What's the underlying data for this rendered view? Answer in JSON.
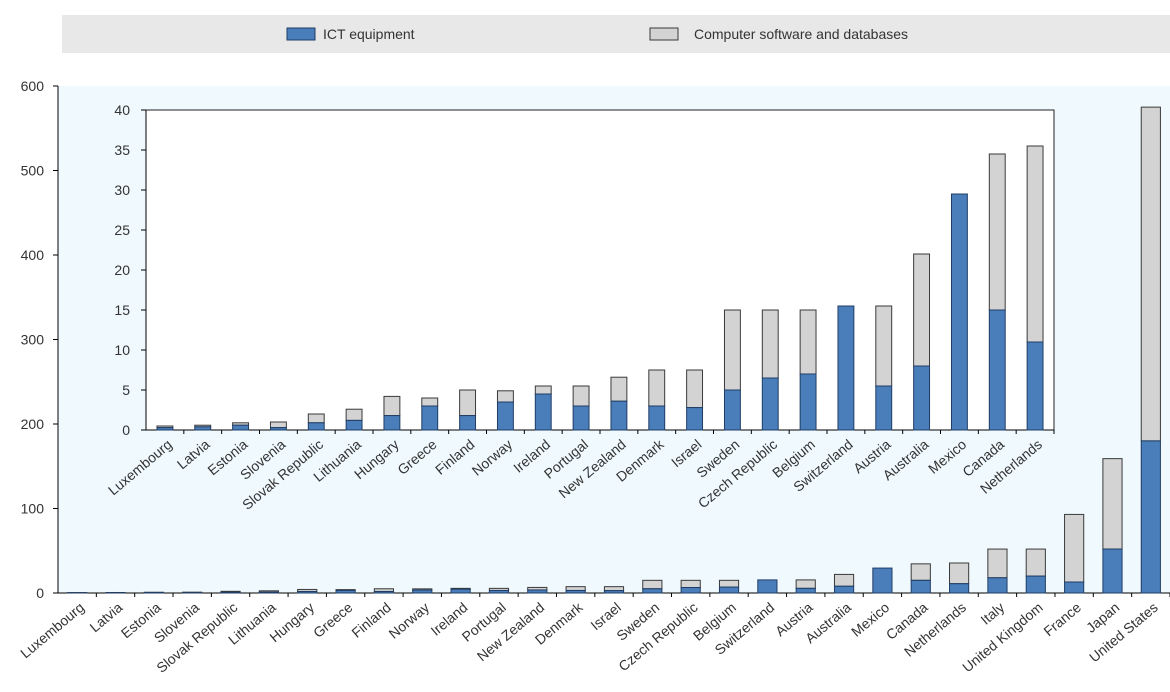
{
  "colors": {
    "ict": "#4a7ebb",
    "ict_stroke": "#1f3d66",
    "software": "#d3d3d3",
    "software_stroke": "#3a3a3a",
    "plot_bg": "#f0fafe",
    "legend_bg": "#e8e8e8",
    "axis": "#000000",
    "grid": "#bfbfbf"
  },
  "legend": {
    "items": [
      {
        "label": "ICT equipment",
        "color": "#4a7ebb"
      },
      {
        "label": "Computer software and databases",
        "color": "#d3d3d3"
      }
    ]
  },
  "chart_data": [
    {
      "type": "bar",
      "stacked": true,
      "title": "",
      "xlabel": "",
      "ylabel": "",
      "ylim": [
        0,
        600
      ],
      "yticks": [
        0,
        100,
        200,
        300,
        400,
        500,
        600
      ],
      "grid": false,
      "legend_position": "top",
      "categories": [
        "Luxembourg",
        "Latvia",
        "Estonia",
        "Slovenia",
        "Slovak Republic",
        "Lithuania",
        "Hungary",
        "Greece",
        "Finland",
        "Norway",
        "Ireland",
        "Portugal",
        "New Zealand",
        "Denmark",
        "Israel",
        "Sweden",
        "Czech Republic",
        "Belgium",
        "Switzerland",
        "Austria",
        "Australia",
        "Mexico",
        "Canada",
        "Netherlands",
        "Italy",
        "United Kingdom",
        "France",
        "Japan",
        "United States"
      ],
      "series": [
        {
          "name": "ICT equipment",
          "values": [
            0.3,
            0.4,
            0.6,
            0.3,
            0.9,
            1.2,
            1.8,
            3.0,
            1.8,
            3.5,
            4.5,
            3.0,
            3.6,
            3.0,
            2.8,
            5.0,
            6.5,
            7.0,
            15.5,
            5.5,
            8.0,
            29.5,
            15.0,
            11.0,
            18,
            20,
            13,
            52,
            180
          ]
        },
        {
          "name": "Computer software and databases",
          "values": [
            0.2,
            0.2,
            0.3,
            0.7,
            1.1,
            1.4,
            2.4,
            1.0,
            3.2,
            1.4,
            1.0,
            2.5,
            3.0,
            4.5,
            4.7,
            10.0,
            8.5,
            8.0,
            0,
            10.0,
            14.0,
            0,
            19.5,
            24.5,
            34,
            32,
            80,
            107,
            395
          ]
        }
      ]
    },
    {
      "type": "bar",
      "stacked": true,
      "title": "",
      "xlabel": "",
      "ylabel": "",
      "ylim": [
        0,
        40
      ],
      "yticks": [
        0,
        5,
        10,
        15,
        20,
        25,
        30,
        35,
        40
      ],
      "grid": false,
      "placement": "inset",
      "categories": [
        "Luxembourg",
        "Latvia",
        "Estonia",
        "Slovenia",
        "Slovak Republic",
        "Lithuania",
        "Hungary",
        "Greece",
        "Finland",
        "Norway",
        "Ireland",
        "Portugal",
        "New Zealand",
        "Denmark",
        "Israel",
        "Sweden",
        "Czech Republic",
        "Belgium",
        "Switzerland",
        "Austria",
        "Australia",
        "Mexico",
        "Canada",
        "Netherlands"
      ],
      "series": [
        {
          "name": "ICT equipment",
          "values": [
            0.3,
            0.4,
            0.6,
            0.3,
            0.9,
            1.2,
            1.8,
            3.0,
            1.8,
            3.5,
            4.5,
            3.0,
            3.6,
            3.0,
            2.8,
            5.0,
            6.5,
            7.0,
            15.5,
            5.5,
            8.0,
            29.5,
            15.0,
            11.0
          ]
        },
        {
          "name": "Computer software and databases",
          "values": [
            0.2,
            0.2,
            0.3,
            0.7,
            1.1,
            1.4,
            2.4,
            1.0,
            3.2,
            1.4,
            1.0,
            2.5,
            3.0,
            4.5,
            4.7,
            10.0,
            8.5,
            8.0,
            0,
            10.0,
            14.0,
            0,
            19.5,
            24.5
          ]
        }
      ]
    }
  ]
}
